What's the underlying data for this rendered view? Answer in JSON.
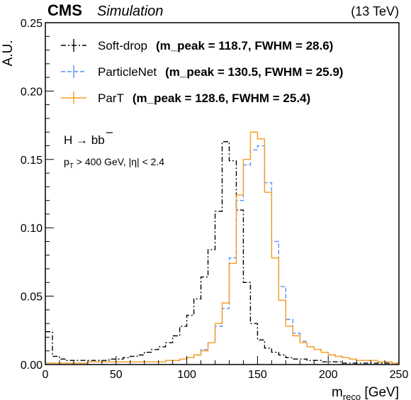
{
  "header": {
    "experiment": "CMS",
    "tag": "Simulation",
    "energy": "(13 TeV)"
  },
  "annotations": {
    "process_prefix": "H → b",
    "process_bbar": "b",
    "cuts": "p_T > 400 GeV,  |η| < 2.4"
  },
  "legend_entries": [
    {
      "label": "Soft-drop",
      "stats": "(m_peak = 118.7, FWHM = 28.6)"
    },
    {
      "label": "ParticleNet",
      "stats": "(m_peak = 130.5, FWHM = 25.9)"
    },
    {
      "label": "ParT",
      "stats": "(m_peak = 128.6, FWHM = 25.4)"
    }
  ],
  "chart_data": {
    "type": "line",
    "style": "step-histogram",
    "xlabel": "m_reco [GeV]",
    "ylabel": "A.U.",
    "xlim": [
      0,
      250
    ],
    "ylim": [
      0,
      0.25
    ],
    "x_ticks": [
      "0",
      "50",
      "100",
      "150",
      "200",
      "250"
    ],
    "y_ticks": [
      "0.00",
      "0.05",
      "0.10",
      "0.15",
      "0.20",
      "0.25"
    ],
    "bin_edges_start": 0,
    "bin_width": 5,
    "legend_position": "top-left",
    "series": [
      {
        "name": "Soft-drop",
        "color": "#000000",
        "line_style": "dashdot",
        "values": [
          0.024,
          0.006,
          0.004,
          0.003,
          0.003,
          0.003,
          0.003,
          0.003,
          0.003,
          0.004,
          0.004,
          0.005,
          0.006,
          0.007,
          0.009,
          0.011,
          0.013,
          0.016,
          0.021,
          0.028,
          0.036,
          0.048,
          0.064,
          0.084,
          0.112,
          0.163,
          0.149,
          0.113,
          0.06,
          0.03,
          0.018,
          0.012,
          0.009,
          0.007,
          0.005,
          0.004,
          0.004,
          0.003,
          0.003,
          0.002,
          0.002,
          0.002,
          0.001,
          0.001,
          0.001,
          0.001,
          0.001,
          0.001,
          0.001,
          0.001
        ]
      },
      {
        "name": "ParticleNet",
        "color": "#5790fc",
        "line_style": "dashed",
        "values": [
          0.001,
          0.001,
          0.001,
          0.001,
          0.001,
          0.001,
          0.002,
          0.002,
          0.002,
          0.002,
          0.002,
          0.002,
          0.002,
          0.002,
          0.002,
          0.002,
          0.002,
          0.003,
          0.003,
          0.004,
          0.005,
          0.007,
          0.011,
          0.016,
          0.028,
          0.041,
          0.078,
          0.12,
          0.146,
          0.157,
          0.16,
          0.133,
          0.09,
          0.057,
          0.033,
          0.023,
          0.017,
          0.013,
          0.011,
          0.009,
          0.007,
          0.006,
          0.005,
          0.004,
          0.003,
          0.003,
          0.003,
          0.002,
          0.002,
          0.001
        ]
      },
      {
        "name": "ParT",
        "color": "#f89c20",
        "line_style": "solid",
        "values": [
          0.001,
          0.001,
          0.001,
          0.001,
          0.001,
          0.001,
          0.002,
          0.002,
          0.002,
          0.002,
          0.002,
          0.002,
          0.002,
          0.002,
          0.002,
          0.002,
          0.002,
          0.003,
          0.003,
          0.004,
          0.005,
          0.007,
          0.01,
          0.016,
          0.03,
          0.045,
          0.074,
          0.124,
          0.15,
          0.17,
          0.165,
          0.126,
          0.078,
          0.047,
          0.028,
          0.021,
          0.016,
          0.013,
          0.011,
          0.009,
          0.007,
          0.006,
          0.005,
          0.004,
          0.003,
          0.003,
          0.003,
          0.002,
          0.002,
          0.001
        ]
      }
    ]
  }
}
